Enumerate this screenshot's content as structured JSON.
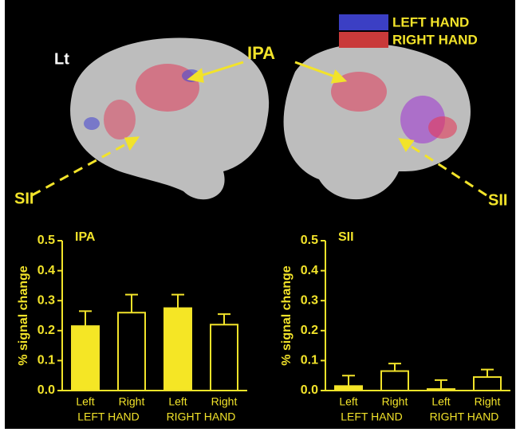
{
  "figure": {
    "legend": [
      {
        "label": "LEFT HAND",
        "color": "#3b3fc4"
      },
      {
        "label": "RIGHT HAND",
        "color": "#c93a3a"
      }
    ],
    "hemisphere": "Lt",
    "region_labels": [
      "IPA",
      "SII",
      "SII"
    ]
  },
  "chart_data": [
    {
      "type": "bar",
      "title": "IPA",
      "y_label": "% signal change",
      "categories": [
        "Left",
        "Right",
        "Left",
        "Right"
      ],
      "groups": [
        "LEFT HAND",
        "RIGHT HAND"
      ],
      "values": [
        0.215,
        0.26,
        0.275,
        0.22
      ],
      "errors": [
        0.05,
        0.06,
        0.045,
        0.035
      ],
      "colors": [
        "#f5e625",
        "none",
        "#f5e625",
        "none"
      ],
      "ylim": [
        0,
        0.5
      ],
      "yticks": [
        {
          "value": 0,
          "label": "0.0"
        },
        0.1,
        0.2,
        0.3,
        0.4,
        0.5
      ]
    },
    {
      "type": "bar",
      "title": "SII",
      "y_label": "% signal change",
      "categories": [
        "Left",
        "Right",
        "Left",
        "Right"
      ],
      "groups": [
        "LEFT HAND",
        "RIGHT HAND"
      ],
      "values": [
        0.015,
        0.065,
        0.005,
        0.045
      ],
      "errors": [
        0.035,
        0.025,
        0.03,
        0.025
      ],
      "colors": [
        "#f5e625",
        "none",
        "#f5e625",
        "none"
      ],
      "ylim": [
        0,
        0.5
      ],
      "yticks": [
        {
          "value": 0,
          "label": "0.0"
        },
        0.1,
        0.2,
        0.3,
        0.4,
        0.5
      ]
    }
  ]
}
